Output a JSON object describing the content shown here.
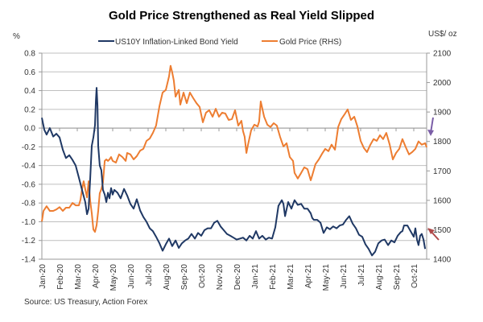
{
  "chart_data": {
    "type": "line",
    "title": "Gold Price Strengthened as Real Yield Slipped",
    "source": "Source: US Treasury, Action Forex",
    "y_left": {
      "label": "%",
      "ylim": [
        -1.4,
        0.8
      ],
      "ticks": [
        "0.8",
        "0.6",
        "0.4",
        "0.2",
        "0.0",
        "-0.2",
        "-0.4",
        "-0.6",
        "-0.8",
        "-1.0",
        "-1.2",
        "-1.4"
      ]
    },
    "y_right": {
      "label": "US$/ oz",
      "ylim": [
        1400,
        2100
      ],
      "ticks": [
        "2100",
        "2000",
        "1900",
        "1800",
        "1700",
        "1600",
        "1500",
        "1400"
      ]
    },
    "x_ticks": [
      "Jan-20",
      "Feb-20",
      "Mar-20",
      "Apr-20",
      "May-20",
      "Jun-20",
      "Jul-20",
      "Aug-20",
      "Sep-20",
      "Oct-20",
      "Nov-20",
      "Dec-20",
      "Jan-21",
      "Feb-21",
      "Mar-21",
      "Apr-21",
      "May-21",
      "Jun-21",
      "Jul-21",
      "Aug-21",
      "Sep-21",
      "Oct-21"
    ],
    "x_unit": "months since Jan-20",
    "grid": true,
    "legend_position": "top",
    "series": [
      {
        "name": "US10Y Inflation-Linked Bond Yield",
        "axis": "left",
        "color": "#1F3864",
        "points": [
          [
            0,
            0.11
          ],
          [
            0.14,
            -0.02
          ],
          [
            0.27,
            -0.07
          ],
          [
            0.45,
            0.0
          ],
          [
            0.64,
            -0.09
          ],
          [
            0.82,
            -0.06
          ],
          [
            1.0,
            -0.1
          ],
          [
            1.18,
            -0.23
          ],
          [
            1.36,
            -0.32
          ],
          [
            1.55,
            -0.29
          ],
          [
            1.73,
            -0.34
          ],
          [
            1.91,
            -0.4
          ],
          [
            2.09,
            -0.53
          ],
          [
            2.27,
            -0.66
          ],
          [
            2.45,
            -0.79
          ],
          [
            2.55,
            -0.92
          ],
          [
            2.64,
            -0.86
          ],
          [
            2.73,
            -0.53
          ],
          [
            2.82,
            -0.19
          ],
          [
            2.91,
            -0.1
          ],
          [
            3.0,
            0.03
          ],
          [
            3.05,
            0.29
          ],
          [
            3.09,
            0.43
          ],
          [
            3.14,
            0.24
          ],
          [
            3.18,
            -0.19
          ],
          [
            3.27,
            -0.4
          ],
          [
            3.36,
            -0.45
          ],
          [
            3.45,
            -0.66
          ],
          [
            3.55,
            -0.71
          ],
          [
            3.64,
            -0.79
          ],
          [
            3.73,
            -0.69
          ],
          [
            3.82,
            -0.75
          ],
          [
            3.91,
            -0.64
          ],
          [
            4.0,
            -0.71
          ],
          [
            4.09,
            -0.66
          ],
          [
            4.27,
            -0.69
          ],
          [
            4.45,
            -0.75
          ],
          [
            4.64,
            -0.65
          ],
          [
            4.82,
            -0.72
          ],
          [
            5.0,
            -0.81
          ],
          [
            5.18,
            -0.86
          ],
          [
            5.36,
            -0.76
          ],
          [
            5.55,
            -0.88
          ],
          [
            5.73,
            -0.95
          ],
          [
            5.91,
            -1.0
          ],
          [
            6.09,
            -1.07
          ],
          [
            6.27,
            -1.1
          ],
          [
            6.45,
            -1.16
          ],
          [
            6.64,
            -1.23
          ],
          [
            6.82,
            -1.31
          ],
          [
            7.0,
            -1.24
          ],
          [
            7.18,
            -1.18
          ],
          [
            7.36,
            -1.26
          ],
          [
            7.55,
            -1.2
          ],
          [
            7.73,
            -1.28
          ],
          [
            7.91,
            -1.23
          ],
          [
            8.09,
            -1.2
          ],
          [
            8.27,
            -1.18
          ],
          [
            8.45,
            -1.13
          ],
          [
            8.64,
            -1.18
          ],
          [
            8.82,
            -1.12
          ],
          [
            9.0,
            -1.15
          ],
          [
            9.18,
            -1.09
          ],
          [
            9.36,
            -1.07
          ],
          [
            9.55,
            -1.07
          ],
          [
            9.73,
            -1.01
          ],
          [
            9.91,
            -0.99
          ],
          [
            10.09,
            -1.05
          ],
          [
            10.27,
            -1.09
          ],
          [
            10.45,
            -1.13
          ],
          [
            10.64,
            -1.15
          ],
          [
            10.82,
            -1.17
          ],
          [
            11.0,
            -1.19
          ],
          [
            11.18,
            -1.18
          ],
          [
            11.36,
            -1.17
          ],
          [
            11.55,
            -1.2
          ],
          [
            11.73,
            -1.15
          ],
          [
            11.91,
            -1.18
          ],
          [
            12.09,
            -1.1
          ],
          [
            12.27,
            -1.18
          ],
          [
            12.45,
            -1.15
          ],
          [
            12.64,
            -1.19
          ],
          [
            12.82,
            -1.17
          ],
          [
            13.0,
            -1.18
          ],
          [
            13.18,
            -1.06
          ],
          [
            13.36,
            -0.83
          ],
          [
            13.55,
            -0.77
          ],
          [
            13.64,
            -0.81
          ],
          [
            13.73,
            -0.94
          ],
          [
            13.91,
            -0.79
          ],
          [
            14.09,
            -0.86
          ],
          [
            14.27,
            -0.77
          ],
          [
            14.45,
            -0.82
          ],
          [
            14.64,
            -0.81
          ],
          [
            14.82,
            -0.86
          ],
          [
            15.0,
            -0.86
          ],
          [
            15.18,
            -0.91
          ],
          [
            15.27,
            -0.96
          ],
          [
            15.36,
            -0.98
          ],
          [
            15.55,
            -0.98
          ],
          [
            15.73,
            -1.01
          ],
          [
            15.91,
            -1.12
          ],
          [
            16.09,
            -1.06
          ],
          [
            16.27,
            -1.08
          ],
          [
            16.45,
            -1.05
          ],
          [
            16.64,
            -1.07
          ],
          [
            16.82,
            -1.04
          ],
          [
            17.0,
            -1.03
          ],
          [
            17.18,
            -0.98
          ],
          [
            17.36,
            -0.94
          ],
          [
            17.55,
            -1.02
          ],
          [
            17.73,
            -1.07
          ],
          [
            17.91,
            -1.14
          ],
          [
            18.09,
            -1.16
          ],
          [
            18.27,
            -1.24
          ],
          [
            18.45,
            -1.29
          ],
          [
            18.64,
            -1.36
          ],
          [
            18.82,
            -1.32
          ],
          [
            19.0,
            -1.23
          ],
          [
            19.18,
            -1.2
          ],
          [
            19.36,
            -1.19
          ],
          [
            19.55,
            -1.25
          ],
          [
            19.73,
            -1.2
          ],
          [
            19.91,
            -1.22
          ],
          [
            20.09,
            -1.15
          ],
          [
            20.27,
            -1.11
          ],
          [
            20.36,
            -1.1
          ],
          [
            20.45,
            -1.04
          ],
          [
            20.64,
            -1.04
          ],
          [
            20.82,
            -1.1
          ],
          [
            21.0,
            -1.16
          ],
          [
            21.09,
            -1.07
          ],
          [
            21.18,
            -1.19
          ],
          [
            21.27,
            -1.25
          ],
          [
            21.36,
            -1.15
          ],
          [
            21.45,
            -1.13
          ],
          [
            21.55,
            -1.19
          ],
          [
            21.64,
            -1.29
          ]
        ]
      },
      {
        "name": "Gold Price (RHS)",
        "axis": "right",
        "color": "#ED7D31",
        "points": [
          [
            0,
            1528
          ],
          [
            0.09,
            1564
          ],
          [
            0.27,
            1580
          ],
          [
            0.45,
            1564
          ],
          [
            0.64,
            1564
          ],
          [
            0.82,
            1569
          ],
          [
            1.0,
            1577
          ],
          [
            1.18,
            1564
          ],
          [
            1.36,
            1575
          ],
          [
            1.55,
            1575
          ],
          [
            1.73,
            1591
          ],
          [
            1.91,
            1583
          ],
          [
            2.09,
            1583
          ],
          [
            2.18,
            1602
          ],
          [
            2.27,
            1638
          ],
          [
            2.36,
            1665
          ],
          [
            2.45,
            1638
          ],
          [
            2.55,
            1610
          ],
          [
            2.64,
            1665
          ],
          [
            2.73,
            1597
          ],
          [
            2.82,
            1556
          ],
          [
            2.91,
            1501
          ],
          [
            3.0,
            1493
          ],
          [
            3.09,
            1515
          ],
          [
            3.18,
            1564
          ],
          [
            3.27,
            1624
          ],
          [
            3.36,
            1638
          ],
          [
            3.45,
            1660
          ],
          [
            3.55,
            1734
          ],
          [
            3.64,
            1739
          ],
          [
            3.73,
            1734
          ],
          [
            3.82,
            1739
          ],
          [
            3.91,
            1747
          ],
          [
            4.0,
            1734
          ],
          [
            4.18,
            1728
          ],
          [
            4.36,
            1756
          ],
          [
            4.55,
            1747
          ],
          [
            4.73,
            1734
          ],
          [
            4.82,
            1761
          ],
          [
            5.0,
            1756
          ],
          [
            5.18,
            1739
          ],
          [
            5.36,
            1750
          ],
          [
            5.55,
            1769
          ],
          [
            5.73,
            1775
          ],
          [
            5.91,
            1802
          ],
          [
            6.09,
            1810
          ],
          [
            6.27,
            1829
          ],
          [
            6.45,
            1854
          ],
          [
            6.64,
            1920
          ],
          [
            6.82,
            1966
          ],
          [
            7.0,
            1975
          ],
          [
            7.18,
            2021
          ],
          [
            7.27,
            2057
          ],
          [
            7.36,
            2035
          ],
          [
            7.45,
            2007
          ],
          [
            7.55,
            1952
          ],
          [
            7.73,
            1975
          ],
          [
            7.82,
            1925
          ],
          [
            8.0,
            1966
          ],
          [
            8.18,
            1930
          ],
          [
            8.36,
            1966
          ],
          [
            8.55,
            1947
          ],
          [
            8.73,
            1930
          ],
          [
            8.91,
            1917
          ],
          [
            9.09,
            1865
          ],
          [
            9.27,
            1898
          ],
          [
            9.45,
            1906
          ],
          [
            9.64,
            1884
          ],
          [
            9.82,
            1911
          ],
          [
            10.0,
            1884
          ],
          [
            10.18,
            1898
          ],
          [
            10.36,
            1895
          ],
          [
            10.55,
            1873
          ],
          [
            10.73,
            1876
          ],
          [
            10.91,
            1906
          ],
          [
            11.09,
            1854
          ],
          [
            11.27,
            1870
          ],
          [
            11.36,
            1835
          ],
          [
            11.45,
            1816
          ],
          [
            11.55,
            1761
          ],
          [
            11.64,
            1789
          ],
          [
            11.82,
            1838
          ],
          [
            12.0,
            1857
          ],
          [
            12.18,
            1851
          ],
          [
            12.27,
            1868
          ],
          [
            12.36,
            1936
          ],
          [
            12.55,
            1884
          ],
          [
            12.73,
            1857
          ],
          [
            12.91,
            1849
          ],
          [
            13.09,
            1862
          ],
          [
            13.27,
            1854
          ],
          [
            13.45,
            1816
          ],
          [
            13.64,
            1783
          ],
          [
            13.82,
            1794
          ],
          [
            14.0,
            1747
          ],
          [
            14.18,
            1734
          ],
          [
            14.27,
            1693
          ],
          [
            14.45,
            1674
          ],
          [
            14.64,
            1693
          ],
          [
            14.82,
            1712
          ],
          [
            15.0,
            1706
          ],
          [
            15.18,
            1668
          ],
          [
            15.27,
            1685
          ],
          [
            15.45,
            1723
          ],
          [
            15.64,
            1739
          ],
          [
            15.82,
            1758
          ],
          [
            16.0,
            1775
          ],
          [
            16.18,
            1767
          ],
          [
            16.36,
            1789
          ],
          [
            16.55,
            1772
          ],
          [
            16.73,
            1849
          ],
          [
            16.91,
            1876
          ],
          [
            17.09,
            1892
          ],
          [
            17.27,
            1909
          ],
          [
            17.45,
            1873
          ],
          [
            17.64,
            1884
          ],
          [
            17.82,
            1851
          ],
          [
            18.0,
            1802
          ],
          [
            18.18,
            1778
          ],
          [
            18.36,
            1764
          ],
          [
            18.55,
            1789
          ],
          [
            18.73,
            1808
          ],
          [
            18.91,
            1802
          ],
          [
            19.09,
            1821
          ],
          [
            19.27,
            1808
          ],
          [
            19.45,
            1829
          ],
          [
            19.64,
            1789
          ],
          [
            19.82,
            1739
          ],
          [
            20.0,
            1761
          ],
          [
            20.18,
            1775
          ],
          [
            20.36,
            1808
          ],
          [
            20.55,
            1780
          ],
          [
            20.73,
            1756
          ],
          [
            20.91,
            1764
          ],
          [
            21.09,
            1775
          ],
          [
            21.27,
            1800
          ],
          [
            21.45,
            1789
          ],
          [
            21.64,
            1794
          ],
          [
            21.73,
            1780
          ]
        ]
      }
    ]
  }
}
